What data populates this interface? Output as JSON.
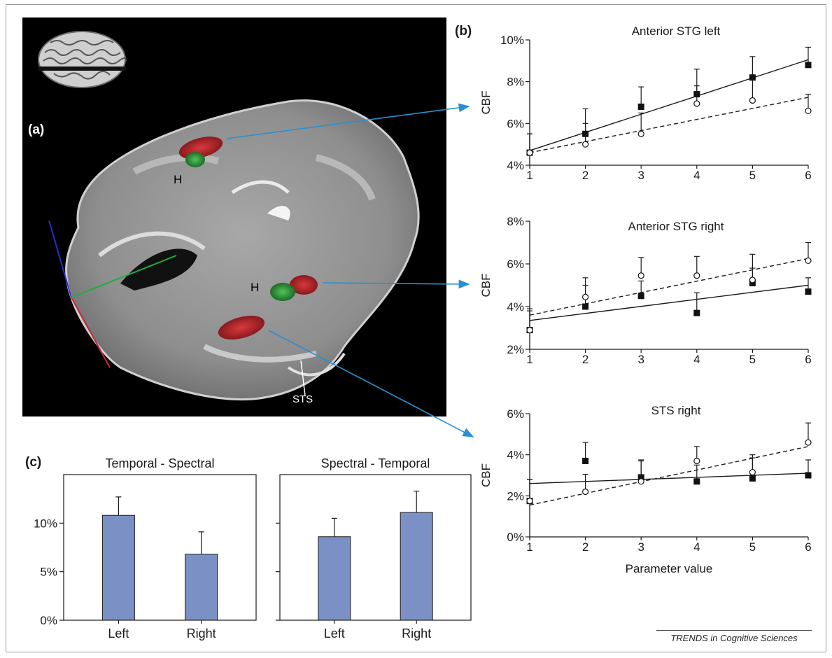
{
  "panel_labels": {
    "a": "(a)",
    "b": "(b)",
    "c": "(c)"
  },
  "brain_labels": {
    "h_top": "H",
    "h_mid": "H",
    "sts": "STS"
  },
  "credit": "TRENDS in Cognitive Sciences",
  "colors": {
    "bar_fill": "#7b90c4",
    "arrow": "#2a8fd0",
    "activation_red": "#b0242a",
    "activation_green": "#2f9a3a"
  },
  "chart_data": [
    {
      "type": "scatter",
      "title": "Anterior STG left",
      "ylabel": "CBF",
      "xlabel": "",
      "x": [
        1,
        2,
        3,
        4,
        5,
        6
      ],
      "xticks": [
        "1",
        "2",
        "3",
        "4",
        "5",
        "6"
      ],
      "ylim": [
        4,
        10
      ],
      "yticks": [
        {
          "v": 4,
          "t": "4%"
        },
        {
          "v": 6,
          "t": "6%"
        },
        {
          "v": 8,
          "t": "8%"
        },
        {
          "v": 10,
          "t": "10%"
        }
      ],
      "series": [
        {
          "marker": "filled-square",
          "values": [
            4.6,
            5.5,
            6.8,
            7.4,
            8.2,
            8.8
          ],
          "err": [
            0.9,
            1.2,
            0.95,
            1.2,
            1.0,
            0.85
          ],
          "fit": [
            4.7,
            9.05
          ],
          "line": "solid"
        },
        {
          "marker": "open-circle",
          "values": [
            4.6,
            5.0,
            5.5,
            6.95,
            7.1,
            6.6
          ],
          "err": [
            0.9,
            1.0,
            1.0,
            0.85,
            1.2,
            0.8
          ],
          "fit": [
            4.6,
            7.25
          ],
          "line": "dashed"
        }
      ]
    },
    {
      "type": "scatter",
      "title": "Anterior STG right",
      "ylabel": "CBF",
      "xlabel": "",
      "x": [
        1,
        2,
        3,
        4,
        5,
        6
      ],
      "xticks": [
        "1",
        "2",
        "3",
        "4",
        "5",
        "6"
      ],
      "ylim": [
        2,
        8
      ],
      "yticks": [
        {
          "v": 2,
          "t": "2%"
        },
        {
          "v": 4,
          "t": "4%"
        },
        {
          "v": 6,
          "t": "6%"
        },
        {
          "v": 8,
          "t": "8%"
        }
      ],
      "series": [
        {
          "marker": "filled-square",
          "values": [
            2.9,
            4.0,
            4.5,
            3.7,
            5.1,
            4.7
          ],
          "err": [
            1.0,
            1.0,
            0.7,
            0.95,
            0.7,
            0.65
          ],
          "fit": [
            3.35,
            5.0
          ],
          "line": "solid"
        },
        {
          "marker": "open-circle",
          "values": [
            2.9,
            4.45,
            5.45,
            5.45,
            5.25,
            6.15
          ],
          "err": [
            0.9,
            0.9,
            0.85,
            0.9,
            1.2,
            0.85
          ],
          "fit": [
            3.6,
            6.25
          ],
          "line": "dashed"
        }
      ]
    },
    {
      "type": "scatter",
      "title": "STS right",
      "ylabel": "CBF",
      "xlabel": "Parameter value",
      "x": [
        1,
        2,
        3,
        4,
        5,
        6
      ],
      "xticks": [
        "1",
        "2",
        "3",
        "4",
        "5",
        "6"
      ],
      "ylim": [
        0,
        6
      ],
      "yticks": [
        {
          "v": 0,
          "t": "0%"
        },
        {
          "v": 2,
          "t": "2%"
        },
        {
          "v": 4,
          "t": "4%"
        },
        {
          "v": 6,
          "t": "6%"
        }
      ],
      "series": [
        {
          "marker": "filled-square",
          "values": [
            1.75,
            3.7,
            2.9,
            2.7,
            2.85,
            3.0
          ],
          "err": [
            1.05,
            0.9,
            0.85,
            0.8,
            1.0,
            0.75
          ],
          "fit": [
            2.6,
            3.1
          ],
          "line": "solid"
        },
        {
          "marker": "open-circle",
          "values": [
            1.75,
            2.2,
            2.7,
            3.7,
            3.15,
            4.6
          ],
          "err": [
            1.05,
            0.85,
            1.0,
            0.7,
            0.85,
            0.95
          ],
          "fit": [
            1.55,
            4.4
          ],
          "line": "dashed"
        }
      ]
    },
    {
      "type": "bar",
      "title": "Temporal - Spectral",
      "categories": [
        "Left",
        "Right"
      ],
      "values": [
        10.8,
        6.8
      ],
      "err": [
        1.9,
        2.3
      ],
      "ylim": [
        0,
        15
      ],
      "yticks": [
        {
          "v": 0,
          "t": "0%"
        },
        {
          "v": 5,
          "t": "5%"
        },
        {
          "v": 10,
          "t": "10%"
        }
      ]
    },
    {
      "type": "bar",
      "title": "Spectral - Temporal",
      "categories": [
        "Left",
        "Right"
      ],
      "values": [
        8.6,
        11.1
      ],
      "err": [
        1.9,
        2.2
      ],
      "ylim": [
        0,
        15
      ],
      "yticks": [
        {
          "v": 0,
          "t": ""
        },
        {
          "v": 5,
          "t": ""
        },
        {
          "v": 10,
          "t": ""
        }
      ]
    }
  ]
}
